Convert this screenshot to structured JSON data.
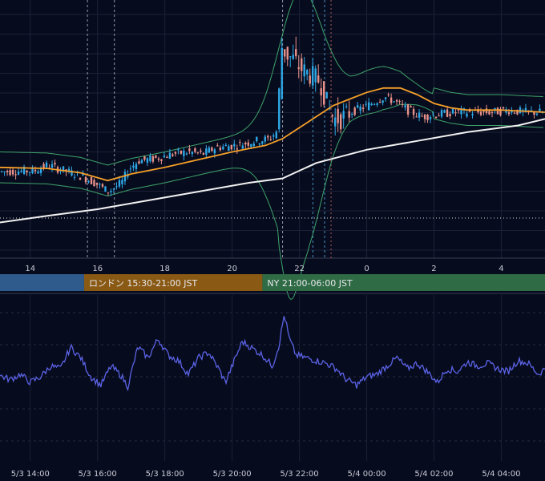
{
  "chart_data": [
    {
      "type": "line",
      "panel": "price",
      "description_series": [
        "candlesticks",
        "bollinger-bands",
        "moving-average-orange",
        "moving-average-white"
      ],
      "x_tick_labels": [
        "14",
        "16",
        "18",
        "20",
        "22",
        "0",
        "2",
        "4"
      ],
      "x_tick_hours": [
        14,
        16,
        18,
        20,
        22,
        24,
        26,
        28
      ],
      "x_range_hours": [
        13.1,
        29.3
      ],
      "y_range": [
        0,
        100
      ],
      "gridlines": true,
      "colors": {
        "up_candle": "#2ea8e6",
        "down_candle": "#e8928a",
        "band": "#3ea56a",
        "ma_short": "#f5a029",
        "ma_long": "#f2f2f2",
        "dotted_level": "#d8d8d8",
        "session_marker": "#5ab4e8"
      },
      "session_marker_hours": [
        15.7,
        16.5,
        21.5,
        22.4,
        22.75
      ],
      "price_path": [
        [
          13.1,
          33
        ],
        [
          14.2,
          33.5
        ],
        [
          14.6,
          36
        ],
        [
          15.2,
          33
        ],
        [
          15.6,
          31
        ],
        [
          16.0,
          28
        ],
        [
          16.4,
          24
        ],
        [
          16.8,
          28
        ],
        [
          17.0,
          34
        ],
        [
          17.3,
          38
        ],
        [
          17.8,
          39
        ],
        [
          18.3,
          41
        ],
        [
          18.8,
          42
        ],
        [
          19.2,
          41
        ],
        [
          19.6,
          44
        ],
        [
          20.2,
          45
        ],
        [
          20.8,
          47
        ],
        [
          21.2,
          48
        ],
        [
          21.45,
          52
        ],
        [
          21.5,
          82
        ],
        [
          21.55,
          90
        ],
        [
          21.7,
          86
        ],
        [
          21.9,
          84
        ],
        [
          22.1,
          80
        ],
        [
          22.4,
          77
        ],
        [
          22.7,
          74
        ],
        [
          22.9,
          64
        ],
        [
          23.1,
          57
        ],
        [
          23.3,
          57
        ],
        [
          23.6,
          60
        ],
        [
          24.1,
          63
        ],
        [
          24.6,
          67
        ],
        [
          24.9,
          65
        ],
        [
          25.3,
          61
        ],
        [
          25.7,
          58
        ],
        [
          26.2,
          59
        ],
        [
          26.7,
          60
        ],
        [
          27.3,
          60
        ],
        [
          27.8,
          60
        ],
        [
          28.3,
          61
        ],
        [
          28.8,
          60
        ],
        [
          29.3,
          60
        ]
      ],
      "ma_short_path": [
        [
          13.1,
          35
        ],
        [
          14.5,
          34.5
        ],
        [
          15.5,
          32.5
        ],
        [
          16.3,
          29
        ],
        [
          17.0,
          32
        ],
        [
          18.0,
          35
        ],
        [
          19.0,
          38.5
        ],
        [
          20.0,
          42
        ],
        [
          21.0,
          45
        ],
        [
          21.5,
          48
        ],
        [
          22.0,
          53
        ],
        [
          22.5,
          58
        ],
        [
          23.0,
          63
        ],
        [
          23.5,
          66
        ],
        [
          24.0,
          69
        ],
        [
          24.5,
          71
        ],
        [
          25.0,
          71
        ],
        [
          25.5,
          68
        ],
        [
          26.0,
          64
        ],
        [
          26.5,
          62
        ],
        [
          27.0,
          61
        ],
        [
          28.0,
          61
        ],
        [
          29.3,
          60
        ]
      ],
      "ma_long_path": [
        [
          13.1,
          10
        ],
        [
          14.5,
          13
        ],
        [
          16.0,
          16
        ],
        [
          17.5,
          20
        ],
        [
          19.0,
          24
        ],
        [
          20.5,
          28
        ],
        [
          21.5,
          30
        ],
        [
          22.5,
          37
        ],
        [
          24.0,
          43
        ],
        [
          25.5,
          47
        ],
        [
          27.0,
          51
        ],
        [
          28.5,
          54
        ],
        [
          29.3,
          57
        ]
      ],
      "dotted_level": 12
    },
    {
      "type": "line",
      "panel": "oscillator",
      "x_tick_labels": [
        "5/3 14:00",
        "5/3 16:00",
        "5/3 18:00",
        "5/3 20:00",
        "5/3 22:00",
        "5/4 00:00",
        "5/4 02:00",
        "5/4 04:00"
      ],
      "x_tick_hours": [
        14,
        16,
        18,
        20,
        22,
        24,
        26,
        28
      ],
      "y_range": [
        0,
        100
      ],
      "color": "#5b63e6",
      "values_path": [
        [
          13.1,
          45
        ],
        [
          13.4,
          42
        ],
        [
          13.7,
          46
        ],
        [
          14.0,
          40
        ],
        [
          14.3,
          44
        ],
        [
          14.6,
          52
        ],
        [
          14.9,
          50
        ],
        [
          15.2,
          66
        ],
        [
          15.5,
          58
        ],
        [
          15.8,
          44
        ],
        [
          16.1,
          38
        ],
        [
          16.4,
          52
        ],
        [
          16.7,
          45
        ],
        [
          16.9,
          37
        ],
        [
          17.2,
          66
        ],
        [
          17.5,
          58
        ],
        [
          17.8,
          72
        ],
        [
          18.1,
          60
        ],
        [
          18.4,
          56
        ],
        [
          18.7,
          46
        ],
        [
          19.0,
          58
        ],
        [
          19.3,
          62
        ],
        [
          19.6,
          50
        ],
        [
          19.8,
          40
        ],
        [
          20.1,
          58
        ],
        [
          20.3,
          70
        ],
        [
          20.6,
          65
        ],
        [
          20.9,
          60
        ],
        [
          21.2,
          52
        ],
        [
          21.4,
          68
        ],
        [
          21.55,
          90
        ],
        [
          21.7,
          72
        ],
        [
          21.9,
          60
        ],
        [
          22.2,
          58
        ],
        [
          22.5,
          56
        ],
        [
          22.8,
          54
        ],
        [
          23.1,
          50
        ],
        [
          23.4,
          42
        ],
        [
          23.7,
          38
        ],
        [
          24.0,
          44
        ],
        [
          24.3,
          46
        ],
        [
          24.6,
          52
        ],
        [
          24.9,
          58
        ],
        [
          25.2,
          50
        ],
        [
          25.5,
          54
        ],
        [
          25.8,
          48
        ],
        [
          26.1,
          40
        ],
        [
          26.4,
          50
        ],
        [
          26.7,
          48
        ],
        [
          27.0,
          55
        ],
        [
          27.3,
          52
        ],
        [
          27.6,
          54
        ],
        [
          27.9,
          50
        ],
        [
          28.2,
          48
        ],
        [
          28.5,
          56
        ],
        [
          28.8,
          54
        ],
        [
          29.1,
          46
        ],
        [
          29.3,
          50
        ]
      ],
      "gridlines": true
    }
  ],
  "sessions": [
    {
      "label": "",
      "color": "#2e5a8c",
      "start_hour": 13.1,
      "end_hour": 15.6
    },
    {
      "label": "ロンドン 15:30-21:00 JST",
      "color": "#8a5a14",
      "start_hour": 15.6,
      "end_hour": 20.9
    },
    {
      "label": "NY 21:00-06:00 JST",
      "color": "#2f6b44",
      "start_hour": 20.9,
      "end_hour": 29.3
    }
  ]
}
